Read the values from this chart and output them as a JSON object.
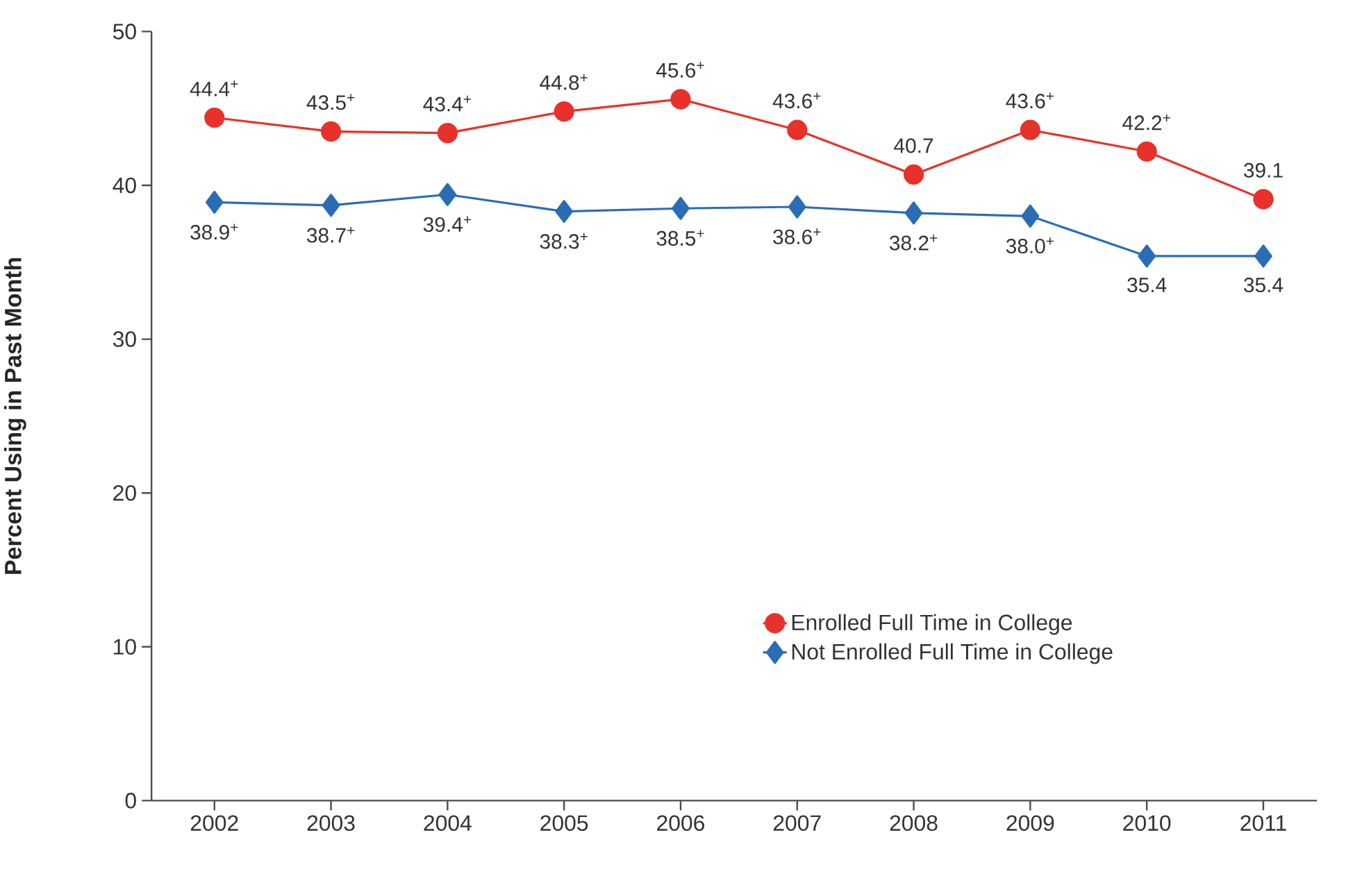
{
  "chart_data": {
    "type": "line",
    "ylabel": "Percent Using in Past Month",
    "categories": [
      "2002",
      "2003",
      "2004",
      "2005",
      "2006",
      "2007",
      "2008",
      "2009",
      "2010",
      "2011"
    ],
    "series": [
      {
        "name": "Enrolled Full Time in College",
        "color": "#e8312a",
        "marker": "circle",
        "values": [
          44.4,
          43.5,
          43.4,
          44.8,
          45.6,
          43.6,
          40.7,
          43.6,
          42.2,
          39.1
        ],
        "value_labels": [
          "44.4$^{+}$",
          "43.5$^{+}$",
          "43.4$^{+}$",
          "44.8$^{+}$",
          "45.6$^{+}$",
          "43.6$^{+}$",
          "40.7",
          "43.6$^{+}$",
          "42.2$^{+}$",
          "39.1"
        ]
      },
      {
        "name": "Not Enrolled Full Time in College",
        "color": "#2a6db5",
        "marker": "diamond",
        "values": [
          38.9,
          38.7,
          39.4,
          38.3,
          38.5,
          38.6,
          38.2,
          38.0,
          35.4,
          35.4
        ],
        "value_labels": [
          "38.9$^{+}$",
          "38.7$^{+}$",
          "39.4$^{+}$",
          "38.3$^{+}$",
          "38.5$^{+}$",
          "38.6$^{+}$",
          "38.2$^{+}$",
          "38.0$^{+}$",
          "35.4",
          "35.4"
        ]
      }
    ],
    "ylim": [
      0,
      50
    ],
    "yticks": [
      0,
      10,
      20,
      30,
      40,
      50
    ],
    "grid": false,
    "legend": "bottom right",
    "line_style": "solid"
  }
}
